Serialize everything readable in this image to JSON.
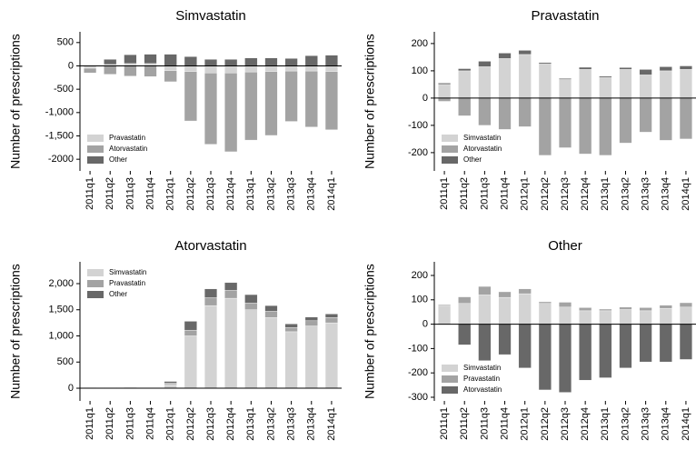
{
  "chart_data": [
    {
      "type": "bar",
      "title": "Simvastatin",
      "ylabel": "Number of prescriptions",
      "legend": "lower left",
      "categories": [
        "2011q1",
        "2011q2",
        "2011q3",
        "2011q4",
        "2012q1",
        "2012q2",
        "2012q3",
        "2012q4",
        "2013q1",
        "2013q2",
        "2013q3",
        "2013q4",
        "2014q1"
      ],
      "series": [
        {
          "name": "Pravastatin",
          "color": "#d3d3d3",
          "values": [
            -50,
            30,
            50,
            50,
            -100,
            -120,
            -150,
            -150,
            -130,
            -120,
            -110,
            -110,
            -120
          ]
        },
        {
          "name": "Atorvastatin",
          "color": "#a3a3a3",
          "values": [
            -100,
            -180,
            -220,
            -230,
            -240,
            -1060,
            -1530,
            -1690,
            -1460,
            -1370,
            -1080,
            -1200,
            -1250
          ]
        },
        {
          "name": "Other",
          "color": "#686868",
          "values": [
            0,
            110,
            190,
            200,
            250,
            200,
            140,
            140,
            170,
            170,
            160,
            220,
            230
          ]
        }
      ],
      "ylim": [
        -2250,
        730
      ],
      "yticks": [
        -2000,
        {
          "value": -1500,
          "label": "-1,500"
        },
        {
          "value": -1000,
          "label": "-1,000"
        },
        -500,
        0,
        500
      ]
    },
    {
      "type": "bar",
      "title": "Pravastatin",
      "ylabel": "Number of prescriptions",
      "legend": "lower left",
      "categories": [
        "2011q1",
        "2011q2",
        "2011q3",
        "2011q4",
        "2012q1",
        "2012q2",
        "2012q3",
        "2012q4",
        "2013q1",
        "2013q2",
        "2013q3",
        "2013q4",
        "2014q1"
      ],
      "series": [
        {
          "name": "Simvastatin",
          "color": "#d3d3d3",
          "values": [
            50,
            100,
            115,
            145,
            160,
            125,
            68,
            105,
            75,
            105,
            85,
            100,
            105
          ]
        },
        {
          "name": "Atorvastatin",
          "color": "#a3a3a3",
          "values": [
            -12,
            -65,
            -100,
            -115,
            -105,
            -210,
            -182,
            -205,
            -210,
            -165,
            -125,
            -155,
            -150
          ]
        },
        {
          "name": "Other",
          "color": "#686868",
          "values": [
            5,
            8,
            20,
            20,
            15,
            5,
            4,
            8,
            5,
            7,
            20,
            15,
            13
          ]
        }
      ],
      "ylim": [
        -267,
        243
      ],
      "yticks": [
        -200,
        -100,
        0,
        100,
        200
      ]
    },
    {
      "type": "bar",
      "title": "Atorvastatin",
      "ylabel": "Number of prescriptions",
      "legend": "upper left",
      "categories": [
        "2011q1",
        "2011q2",
        "2011q3",
        "2011q4",
        "2012q1",
        "2012q2",
        "2012q3",
        "2012q4",
        "2013q1",
        "2013q2",
        "2013q3",
        "2013q4",
        "2014q1"
      ],
      "series": [
        {
          "name": "Simvastatin",
          "color": "#d3d3d3",
          "values": [
            5,
            5,
            10,
            5,
            70,
            1000,
            1580,
            1720,
            1500,
            1350,
            1080,
            1190,
            1250
          ]
        },
        {
          "name": "Pravastatin",
          "color": "#a3a3a3",
          "values": [
            3,
            5,
            5,
            5,
            30,
            110,
            150,
            150,
            130,
            120,
            80,
            100,
            100
          ]
        },
        {
          "name": "Other",
          "color": "#686868",
          "values": [
            2,
            5,
            5,
            5,
            30,
            170,
            170,
            150,
            160,
            110,
            70,
            70,
            70
          ]
        }
      ],
      "ylim": [
        -243,
        2417
      ],
      "yticks": [
        0,
        500,
        {
          "value": 1000,
          "label": "1,000"
        },
        {
          "value": 1500,
          "label": "1,500"
        },
        {
          "value": 2000,
          "label": "2,000"
        }
      ]
    },
    {
      "type": "bar",
      "title": "Other",
      "ylabel": "Number of prescriptions",
      "legend": "lower left",
      "categories": [
        "2011q1",
        "2011q2",
        "2011q3",
        "2011q4",
        "2012q1",
        "2012q2",
        "2012q3",
        "2012q4",
        "2013q1",
        "2013q2",
        "2013q3",
        "2013q4",
        "2014q1"
      ],
      "series": [
        {
          "name": "Simvastatin",
          "color": "#d3d3d3",
          "values": [
            75,
            85,
            120,
            110,
            125,
            85,
            70,
            55,
            55,
            60,
            55,
            65,
            70
          ]
        },
        {
          "name": "Pravastatin",
          "color": "#a3a3a3",
          "values": [
            5,
            27,
            35,
            23,
            20,
            7,
            20,
            13,
            7,
            10,
            13,
            13,
            18
          ]
        },
        {
          "name": "Atorvastatin",
          "color": "#686868",
          "values": [
            -2,
            -85,
            -150,
            -125,
            -180,
            -270,
            -280,
            -230,
            -220,
            -180,
            -155,
            -155,
            -145
          ]
        }
      ],
      "ylim": [
        -315,
        256
      ],
      "yticks": [
        -300,
        -200,
        -100,
        0,
        100,
        200
      ]
    }
  ]
}
